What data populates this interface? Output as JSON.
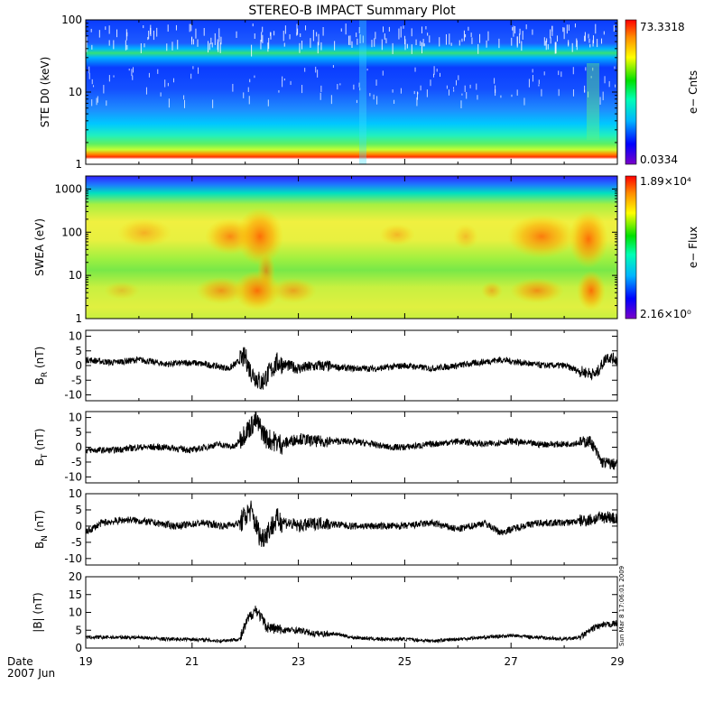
{
  "title": "STEREO-B IMPACT Summary Plot",
  "x_axis": {
    "date_label": "Date",
    "month_label": "2007 Jun",
    "ticks": [
      "19",
      "21",
      "23",
      "25",
      "27",
      "29"
    ]
  },
  "timestamp": "Sun Mar  8 17:06:01 2009",
  "colors": {
    "background": "#ffffff",
    "axes": "#000000",
    "trace": "#000000",
    "colormap": [
      "#7a00c8",
      "#0000ff",
      "#00b4ff",
      "#00ffb4",
      "#00e000",
      "#ffff00",
      "#ff8c00",
      "#ff0000"
    ]
  },
  "chart_data": [
    {
      "type": "heatmap",
      "ylabel": "STE D0 (keV)",
      "yscale": "log",
      "ylim": [
        1,
        100
      ],
      "yticks": [
        "1",
        "10",
        "100"
      ],
      "colorbar": {
        "label": "e− Cnts",
        "max": "73.3318",
        "min": "0.0334"
      }
    },
    {
      "type": "heatmap",
      "ylabel": "SWEA (eV)",
      "yscale": "log",
      "ylim": [
        1,
        2000
      ],
      "yticks": [
        "1",
        "10",
        "100",
        "1000"
      ],
      "colorbar": {
        "label": "e− Flux",
        "max": "1.89×10⁴",
        "min": "2.16×10⁰"
      }
    },
    {
      "type": "line",
      "ylabel": {
        "main": "B",
        "sub": "R",
        "unit": " (nT)"
      },
      "ylim": [
        -12,
        12
      ],
      "yticks": [
        "10",
        "5",
        "0",
        "-5",
        "-10"
      ],
      "anchors": [
        [
          19.0,
          2
        ],
        [
          19.5,
          1
        ],
        [
          20.0,
          2
        ],
        [
          20.5,
          0.5
        ],
        [
          21.0,
          1
        ],
        [
          21.4,
          0
        ],
        [
          21.7,
          -1
        ],
        [
          22.0,
          3
        ],
        [
          22.1,
          -2
        ],
        [
          22.3,
          -6
        ],
        [
          22.6,
          1
        ],
        [
          23.0,
          -1
        ],
        [
          23.4,
          0
        ],
        [
          24.0,
          -1
        ],
        [
          24.5,
          -1
        ],
        [
          25.0,
          0
        ],
        [
          25.5,
          -1
        ],
        [
          26.0,
          0
        ],
        [
          26.4,
          1
        ],
        [
          26.8,
          2
        ],
        [
          27.2,
          1
        ],
        [
          27.6,
          0
        ],
        [
          28.0,
          0
        ],
        [
          28.3,
          -2
        ],
        [
          28.6,
          -3
        ],
        [
          28.8,
          3
        ],
        [
          29.0,
          2
        ]
      ]
    },
    {
      "type": "line",
      "ylabel": {
        "main": "B",
        "sub": "T",
        "unit": " (nT)"
      },
      "ylim": [
        -12,
        12
      ],
      "yticks": [
        "10",
        "5",
        "0",
        "-5",
        "-10"
      ],
      "anchors": [
        [
          19.0,
          -1
        ],
        [
          19.5,
          -1
        ],
        [
          20.0,
          0
        ],
        [
          20.5,
          0
        ],
        [
          21.0,
          -1
        ],
        [
          21.5,
          1
        ],
        [
          21.8,
          0
        ],
        [
          22.0,
          5
        ],
        [
          22.2,
          9
        ],
        [
          22.4,
          3
        ],
        [
          22.7,
          1
        ],
        [
          23.0,
          3
        ],
        [
          23.3,
          2
        ],
        [
          23.7,
          2
        ],
        [
          24.0,
          2
        ],
        [
          24.4,
          1
        ],
        [
          24.7,
          0
        ],
        [
          25.0,
          0
        ],
        [
          25.5,
          1
        ],
        [
          26.0,
          2
        ],
        [
          26.5,
          1
        ],
        [
          27.0,
          2
        ],
        [
          27.5,
          1
        ],
        [
          28.0,
          1
        ],
        [
          28.5,
          2
        ],
        [
          28.7,
          -5
        ],
        [
          29.0,
          -6
        ]
      ]
    },
    {
      "type": "line",
      "ylabel": {
        "main": "B",
        "sub": "N",
        "unit": " (nT)"
      },
      "ylim": [
        -12,
        10
      ],
      "yticks": [
        "10",
        "5",
        "0",
        "-5",
        "-10"
      ],
      "anchors": [
        [
          19.0,
          -2
        ],
        [
          19.3,
          1
        ],
        [
          19.8,
          2
        ],
        [
          20.3,
          1
        ],
        [
          20.7,
          0
        ],
        [
          21.2,
          1
        ],
        [
          21.6,
          0
        ],
        [
          21.9,
          1
        ],
        [
          22.1,
          5
        ],
        [
          22.3,
          -4
        ],
        [
          22.6,
          2
        ],
        [
          23.0,
          0
        ],
        [
          23.4,
          1
        ],
        [
          24.0,
          0
        ],
        [
          24.5,
          0
        ],
        [
          25.0,
          0
        ],
        [
          25.5,
          1
        ],
        [
          26.0,
          -1
        ],
        [
          26.5,
          1
        ],
        [
          26.8,
          -2
        ],
        [
          27.2,
          0
        ],
        [
          27.5,
          1
        ],
        [
          28.0,
          1
        ],
        [
          28.5,
          2
        ],
        [
          28.8,
          3
        ],
        [
          29.0,
          2
        ]
      ]
    },
    {
      "type": "line",
      "ylabel": {
        "main": "|B|",
        "sub": "",
        "unit": " (nT)"
      },
      "ylim": [
        0,
        20
      ],
      "yticks": [
        "20",
        "15",
        "10",
        "5",
        "0"
      ],
      "anchors": [
        [
          19.0,
          3
        ],
        [
          19.5,
          3
        ],
        [
          20.0,
          3
        ],
        [
          20.5,
          2.5
        ],
        [
          21.0,
          2.5
        ],
        [
          21.5,
          2
        ],
        [
          21.9,
          2.5
        ],
        [
          22.05,
          8
        ],
        [
          22.2,
          11
        ],
        [
          22.4,
          6
        ],
        [
          22.7,
          5
        ],
        [
          23.0,
          5
        ],
        [
          23.3,
          4
        ],
        [
          23.7,
          4
        ],
        [
          24.0,
          3
        ],
        [
          24.5,
          2.5
        ],
        [
          25.0,
          2.5
        ],
        [
          25.5,
          2
        ],
        [
          26.0,
          2.5
        ],
        [
          26.5,
          3
        ],
        [
          27.0,
          3.5
        ],
        [
          27.5,
          3
        ],
        [
          28.0,
          2.5
        ],
        [
          28.3,
          3
        ],
        [
          28.6,
          6
        ],
        [
          28.8,
          6.5
        ],
        [
          29.0,
          7
        ]
      ]
    }
  ]
}
